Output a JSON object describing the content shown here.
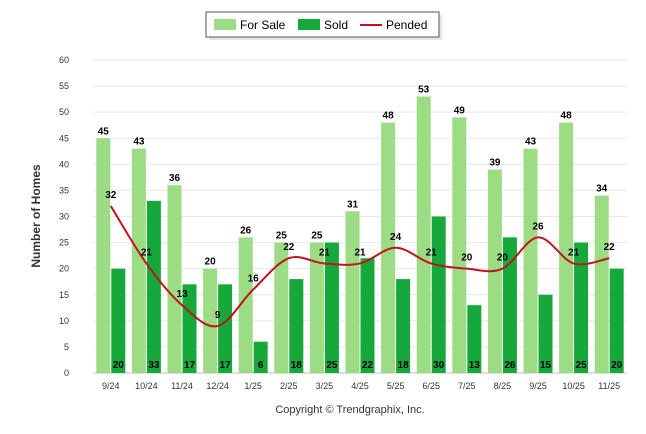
{
  "chart_data": {
    "type": "bar",
    "title": "",
    "xlabel": "",
    "ylabel": "Number of Homes",
    "ylim": [
      0,
      60
    ],
    "yticks": [
      0,
      5,
      10,
      15,
      20,
      25,
      30,
      35,
      40,
      45,
      50,
      55,
      60
    ],
    "grid": true,
    "legend_position": "top-center",
    "categories": [
      "9/24",
      "10/24",
      "11/24",
      "12/24",
      "1/25",
      "2/25",
      "3/25",
      "4/25",
      "5/25",
      "6/25",
      "7/25",
      "8/25",
      "9/25",
      "10/25",
      "11/25"
    ],
    "series": [
      {
        "name": "For Sale",
        "type": "bar",
        "color": "#9cdc84",
        "values": [
          45,
          43,
          36,
          20,
          26,
          25,
          25,
          31,
          48,
          53,
          49,
          39,
          43,
          48,
          34
        ]
      },
      {
        "name": "Sold",
        "type": "bar",
        "color": "#16a83a",
        "values": [
          20,
          33,
          17,
          17,
          6,
          18,
          25,
          22,
          18,
          30,
          13,
          26,
          15,
          25,
          20
        ]
      },
      {
        "name": "Pended",
        "type": "line",
        "color": "#c0141c",
        "values": [
          32,
          21,
          13,
          9,
          16,
          22,
          21,
          21,
          24,
          21,
          20,
          20,
          26,
          21,
          22
        ]
      }
    ],
    "credit": "Copyright © Trendgraphix, Inc."
  }
}
